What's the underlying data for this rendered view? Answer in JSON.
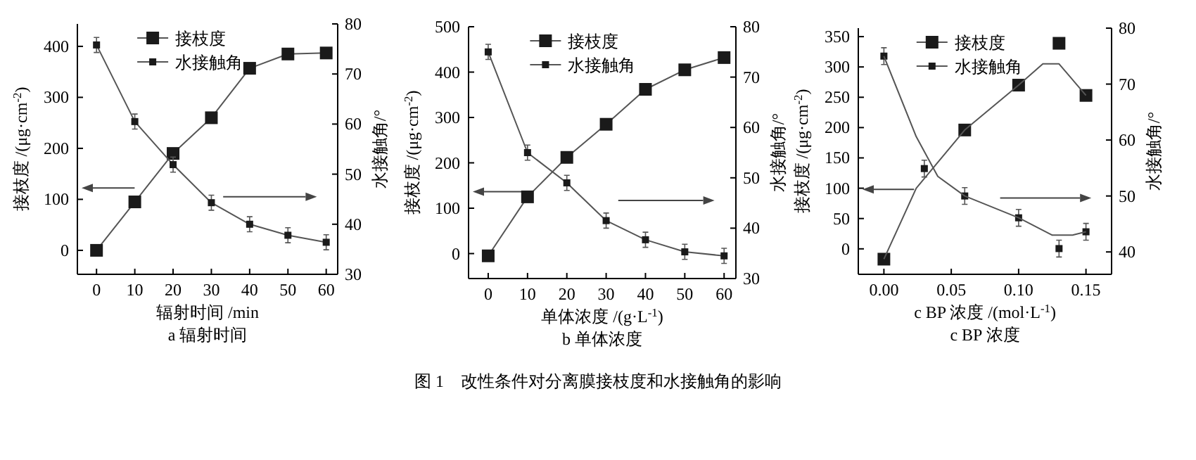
{
  "chart_data": [
    {
      "type": "line",
      "xlabel": "辐射时间 /min",
      "ylabel": "接枝度 /(μg·cm$^{-2}$)",
      "y2label": "水接触角/°",
      "annotations": [
        "a 辐射时间"
      ],
      "xlim": [
        -5,
        63
      ],
      "xticks": [
        0,
        10,
        20,
        30,
        40,
        50,
        60
      ],
      "ylim": [
        -47,
        444
      ],
      "yticks": [
        0,
        100,
        200,
        300,
        400
      ],
      "y2lim": [
        30,
        80
      ],
      "y2ticks": [
        30,
        40,
        50,
        60,
        70,
        80
      ],
      "legend": "top",
      "x": [
        0,
        10,
        20,
        30,
        40,
        50,
        60
      ],
      "series": [
        {
          "name": "接枝度",
          "color": "#1a1a1a",
          "marker": "square",
          "values": [
            0,
            95,
            190,
            260,
            357,
            385,
            387
          ]
        },
        {
          "name": "水接触角",
          "color": "#1a1a1a",
          "marker": "square",
          "axis": "y2",
          "values": [
            75.8,
            60.5,
            51.9,
            44.3,
            40,
            37.8,
            36.4
          ],
          "errors": [
            1.5,
            1.5,
            1.5,
            1.5,
            1.5,
            1.5,
            1.5
          ]
        }
      ]
    },
    {
      "type": "line",
      "xlabel": "单体浓度 /(g·L$^{-1}$)",
      "ylabel": "接枝度 /(μg·cm$^{-2}$)",
      "y2label": "水接触角/°",
      "annotations": [
        "b 单体浓度",
        "图 1　改性条件对分离膜接枝度和水接触角的影响"
      ],
      "xlim": [
        -5,
        63
      ],
      "xticks": [
        0,
        10,
        20,
        30,
        40,
        50,
        60
      ],
      "ylim": [
        -55,
        500
      ],
      "yticks": [
        0,
        100,
        200,
        300,
        400,
        500
      ],
      "y2lim": [
        30,
        80
      ],
      "y2ticks": [
        30,
        40,
        50,
        60,
        70,
        80
      ],
      "legend": "top",
      "x": [
        0,
        10,
        20,
        30,
        40,
        50,
        60
      ],
      "series": [
        {
          "name": "接枝度",
          "color": "#1a1a1a",
          "marker": "square",
          "values": [
            -5,
            125,
            212,
            285,
            362,
            405,
            432
          ]
        },
        {
          "name": "水接触角",
          "color": "#1a1a1a",
          "marker": "square",
          "axis": "y2",
          "values": [
            75,
            55,
            49,
            41.5,
            37.7,
            35.3,
            34.5
          ],
          "errors": [
            1.5,
            1.5,
            1.5,
            1.5,
            1.5,
            1.5,
            1.5
          ]
        }
      ]
    },
    {
      "type": "scatter",
      "xlabel": "c BP 浓度 /(mol·L$^{-1}$)",
      "ylabel": "接枝度 /(μg·cm$^{-2}$)",
      "y2label": "水接触角/°",
      "annotations": [
        "c BP 浓度"
      ],
      "xlim": [
        -0.019,
        0.169
      ],
      "xticks": [
        {
          "value": 0,
          "label": "0.00"
        },
        {
          "value": 0.05,
          "label": "0.05"
        },
        {
          "value": 0.1,
          "label": "0.10"
        },
        {
          "value": 0.15,
          "label": "0.15"
        }
      ],
      "ylim": [
        -42,
        364
      ],
      "yticks": [
        0,
        50,
        100,
        150,
        200,
        250,
        300,
        350
      ],
      "y2lim": [
        36,
        80
      ],
      "y2ticks": [
        40,
        50,
        60,
        70,
        80
      ],
      "legend": "top",
      "series": [
        {
          "name": "接枝度",
          "color": "#1a1a1a",
          "marker": "square",
          "x": [
            0,
            0.06,
            0.1,
            0.13,
            0.15
          ],
          "values": [
            -17,
            196,
            270,
            339,
            253
          ]
        },
        {
          "name": "水接触角",
          "color": "#1a1a1a",
          "marker": "square",
          "axis": "y2",
          "x": [
            0,
            0.03,
            0.06,
            0.1,
            0.13,
            0.15
          ],
          "values": [
            75,
            54.9,
            50,
            46.1,
            40.6,
            43.6
          ],
          "errors": [
            1.5,
            1.5,
            1.5,
            1.5,
            1.5,
            1.5
          ]
        },
        {
          "type": "line",
          "color": "#555555",
          "x": [
            0,
            0.024,
            0.06,
            0.1,
            0.118,
            0.13,
            0.15
          ],
          "values": [
            -17,
            100,
            196,
            270,
            305,
            305,
            253
          ]
        },
        {
          "type": "line",
          "color": "#555555",
          "axis": "y2",
          "x": [
            0,
            0.024,
            0.04,
            0.06,
            0.1,
            0.125,
            0.14,
            0.15
          ],
          "values": [
            75,
            60.6,
            53.5,
            50,
            46.1,
            43,
            43,
            43.6
          ]
        }
      ]
    }
  ]
}
